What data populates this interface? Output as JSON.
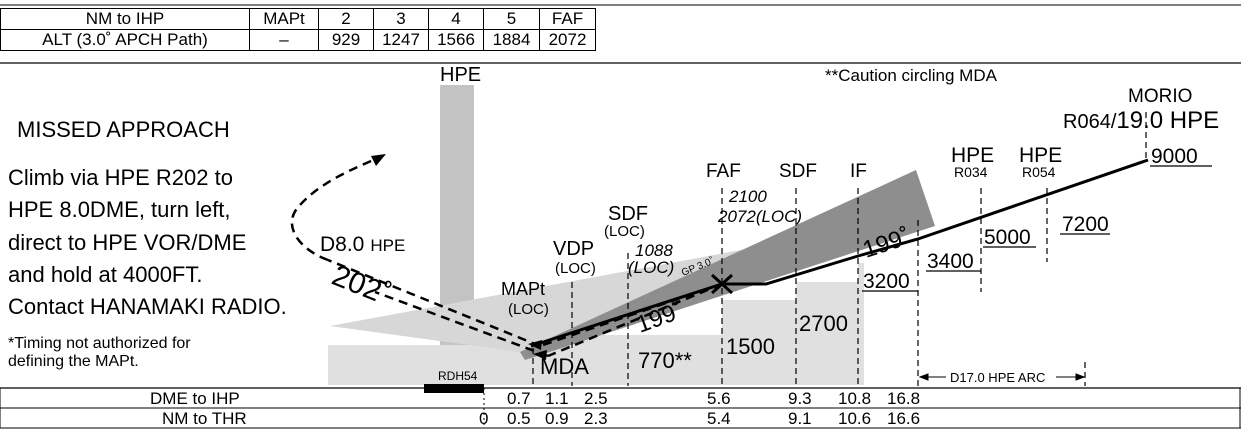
{
  "alt_table": {
    "rows": [
      {
        "label": "NM to IHP",
        "cells": [
          "MAPt",
          "2",
          "3",
          "4",
          "5",
          "FAF"
        ]
      },
      {
        "label": "ALT (3.0˚ APCH Path)",
        "cells": [
          "–",
          "929",
          "1247",
          "1566",
          "1884",
          "2072"
        ]
      }
    ]
  },
  "missed_approach": {
    "title": "MISSED APPROACH",
    "lines": [
      "Climb via HPE R202 to",
      "HPE 8.0DME, turn left,",
      "direct to HPE VOR/DME",
      "and hold at 4000FT.",
      "Contact HANAMAKI RADIO."
    ],
    "note_lines": [
      "*Timing not authorized for",
      "defining the MAPt."
    ]
  },
  "labels": {
    "hpe_top": "HPE",
    "caution": "**Caution circling MDA",
    "morio": "MORIO",
    "morio_radial_small": "R064/",
    "morio_radial_big": "19.0 HPE",
    "d80_a": "D8.0",
    "d80_b": "HPE",
    "radial_202": "202˚",
    "rdh": "RDH54",
    "mapt": "MAPt",
    "mapt_loc": "(LOC)",
    "vdp": "VDP",
    "vdp_loc": "(LOC)",
    "sdf_loc": "SDF",
    "sdf_loc_sub": "(LOC)",
    "sdf_loc_alt_a": "1088",
    "sdf_loc_alt_b": "(LOC)",
    "gp": "GP 3.0˚",
    "faf": "FAF",
    "faf_alt_a": "2100",
    "faf_alt_b": "2072(LOC)",
    "sdf": "SDF",
    "if": "IF",
    "course_inbound": "199˚",
    "course_outer": "199˚",
    "hpe_r034_a": "HPE",
    "hpe_r034_b": "R034",
    "hpe_r054_a": "HPE",
    "hpe_r054_b": "R054",
    "mda": "MDA",
    "mda_770": "770**",
    "alt_1500": "1500",
    "alt_2700": "2700",
    "alt_3200": "3200",
    "alt_3400": "3400",
    "alt_5000": "5000",
    "alt_7200": "7200",
    "alt_9000": "9000",
    "arc": "D17.0 HPE ARC"
  },
  "dme_table": {
    "dme_label": "DME to IHP",
    "dme_values": [
      "0.7",
      "1.1",
      "2.5",
      "5.6",
      "9.3",
      "10.8",
      "16.8"
    ],
    "thr_label": "NM to THR",
    "thr_values": [
      "0",
      "0.5",
      "0.9",
      "2.3",
      "5.4",
      "9.1",
      "10.6",
      "16.6"
    ]
  }
}
